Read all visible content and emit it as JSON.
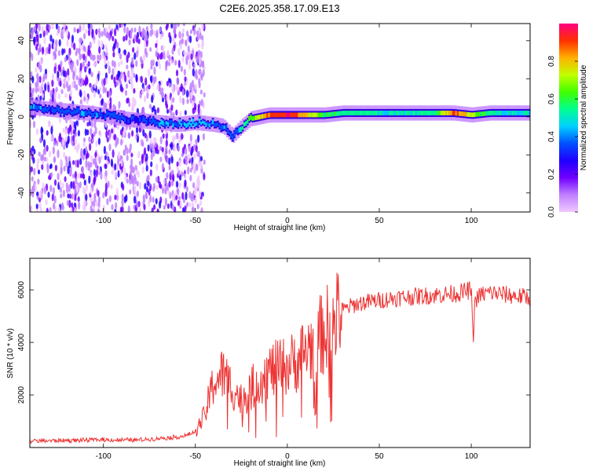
{
  "title": "C2E6.2025.358.17.09.E13",
  "chart_data": [
    {
      "type": "heatmap",
      "xlabel": "Height of straight line (km)",
      "ylabel": "Frequency (Hz)",
      "xlim": [
        -140,
        132
      ],
      "ylim": [
        -50,
        49
      ],
      "xticks": [
        -100,
        -50,
        0,
        50,
        100
      ],
      "yticks": [
        -40,
        -20,
        0,
        20,
        40
      ],
      "colorbar": {
        "label": "Normalized spectral amplitude",
        "range": [
          0,
          1
        ],
        "ticks": [
          0.0,
          0.2,
          0.4,
          0.6,
          0.8
        ],
        "colors": [
          "#f0c8ff",
          "#c080ff",
          "#7000ff",
          "#2000ff",
          "#0050ff",
          "#00d0ff",
          "#00ff90",
          "#40ff00",
          "#c0ff00",
          "#ffb000",
          "#ff3000",
          "#ff0080"
        ]
      },
      "band_trace": {
        "x": [
          -138,
          -130,
          -120,
          -110,
          -100,
          -90,
          -80,
          -70,
          -60,
          -50,
          -40,
          -35,
          -30,
          -25,
          -20,
          -10,
          0,
          10,
          20,
          30,
          40,
          50,
          60,
          70,
          80,
          90,
          100,
          110,
          120,
          132
        ],
        "y": [
          5,
          4,
          3,
          2,
          1,
          -1,
          -2,
          -3,
          -4,
          -3,
          -4,
          -5,
          -10,
          -5,
          -1,
          1,
          1,
          1,
          1,
          2,
          2,
          2,
          2,
          2,
          2,
          2,
          1,
          2,
          2,
          2
        ],
        "amplitude": [
          0.4,
          0.35,
          0.35,
          0.4,
          0.35,
          0.35,
          0.3,
          0.4,
          0.4,
          0.45,
          0.4,
          0.4,
          0.35,
          0.5,
          0.65,
          0.9,
          0.95,
          0.8,
          0.6,
          0.55,
          0.55,
          0.5,
          0.5,
          0.5,
          0.55,
          0.9,
          0.7,
          0.5,
          0.5,
          0.5
        ]
      },
      "noise_region_x": [
        -140,
        -50
      ]
    },
    {
      "type": "line",
      "xlabel": "Height of straight line (km)",
      "ylabel": "SNR (10 * v/v)",
      "xlim": [
        -140,
        132
      ],
      "ylim": [
        0,
        7200
      ],
      "xticks": [
        -100,
        -50,
        0,
        50,
        100
      ],
      "yticks": [
        2000,
        4000,
        6000
      ],
      "color": "#ee3333",
      "series": [
        {
          "x": [
            -140,
            -130,
            -120,
            -110,
            -100,
            -90,
            -80,
            -70,
            -60,
            -55,
            -50,
            -45,
            -40,
            -35,
            -30,
            -25,
            -20,
            -15,
            -10,
            -5,
            0,
            5,
            10,
            15,
            20,
            25,
            30,
            35,
            40,
            50,
            60,
            70,
            80,
            90,
            95,
            100,
            101,
            102,
            105,
            110,
            120,
            132
          ],
          "y": [
            250,
            260,
            270,
            280,
            300,
            280,
            290,
            350,
            400,
            450,
            600,
            1200,
            2500,
            2800,
            2300,
            1800,
            2200,
            2600,
            2900,
            3000,
            3100,
            3300,
            3700,
            4000,
            4400,
            4800,
            5200,
            5400,
            5500,
            5600,
            5700,
            5750,
            5800,
            5850,
            5900,
            6000,
            4000,
            5600,
            5800,
            5900,
            5800,
            5700
          ]
        }
      ]
    }
  ]
}
